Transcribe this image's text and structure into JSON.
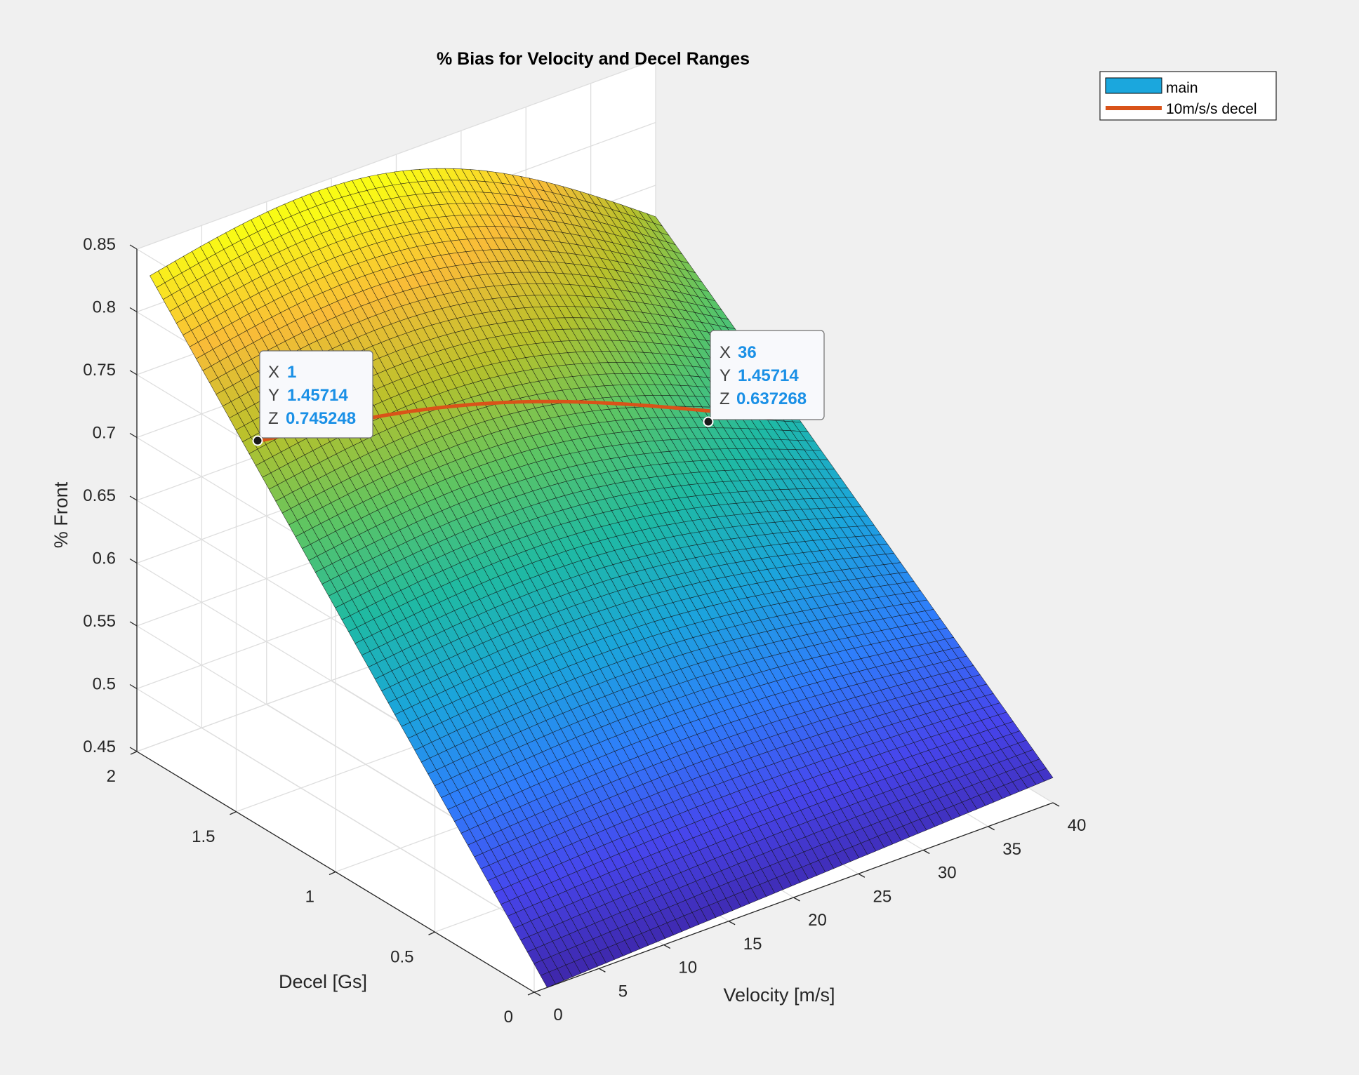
{
  "chart_data": {
    "type": "surface3d",
    "title": "% Bias for Velocity and Decel Ranges",
    "xlabel": "Velocity [m/s]",
    "ylabel": "Decel [Gs]",
    "zlabel": "% Front",
    "xlim": [
      0,
      40
    ],
    "ylim": [
      0,
      2
    ],
    "zlim": [
      0.45,
      0.85
    ],
    "x_ticks": [
      "0",
      "5",
      "10",
      "15",
      "20",
      "25",
      "30",
      "35",
      "40"
    ],
    "y_ticks": [
      "0",
      "0.5",
      "1",
      "1.5",
      "2"
    ],
    "z_ticks": [
      "0.45",
      "0.5",
      "0.55",
      "0.6",
      "0.65",
      "0.7",
      "0.75",
      "0.8",
      "0.85"
    ],
    "x_tick_values": [
      0,
      5,
      10,
      15,
      20,
      25,
      30,
      35,
      40
    ],
    "y_tick_values": [
      0,
      0.5,
      1,
      1.5,
      2
    ],
    "z_tick_values": [
      0.45,
      0.5,
      0.55,
      0.6,
      0.65,
      0.7,
      0.75,
      0.8,
      0.85
    ],
    "surface": {
      "x_range": [
        1,
        40
      ],
      "y_range": [
        0,
        2
      ],
      "corners": {
        "x1_y0": 0.45,
        "x40_y0": 0.47,
        "x1_y2": 0.825,
        "x40_y2": 0.725
      },
      "colormap": [
        "#3e26a8",
        "#4745ec",
        "#2f7efb",
        "#1ba5db",
        "#1fbaa3",
        "#5dc563",
        "#b8c12b",
        "#f9bc38",
        "#f9fb15"
      ]
    },
    "series": [
      {
        "name": "main",
        "color": "#1ba7dd",
        "kind": "surface"
      },
      {
        "name": "10m/s/s decel",
        "color": "#d95319",
        "kind": "line",
        "y": 1.45714,
        "x_range": [
          1,
          36
        ]
      }
    ],
    "datatips": [
      {
        "x": 1,
        "y": 1.45714,
        "z": 0.745248,
        "x_text": "1",
        "y_text": "1.45714",
        "z_text": "0.745248"
      },
      {
        "x": 36,
        "y": 1.45714,
        "z": 0.637268,
        "x_text": "36",
        "y_text": "1.45714",
        "z_text": "0.637268"
      }
    ],
    "legend_location": "top-right",
    "grid": true
  }
}
